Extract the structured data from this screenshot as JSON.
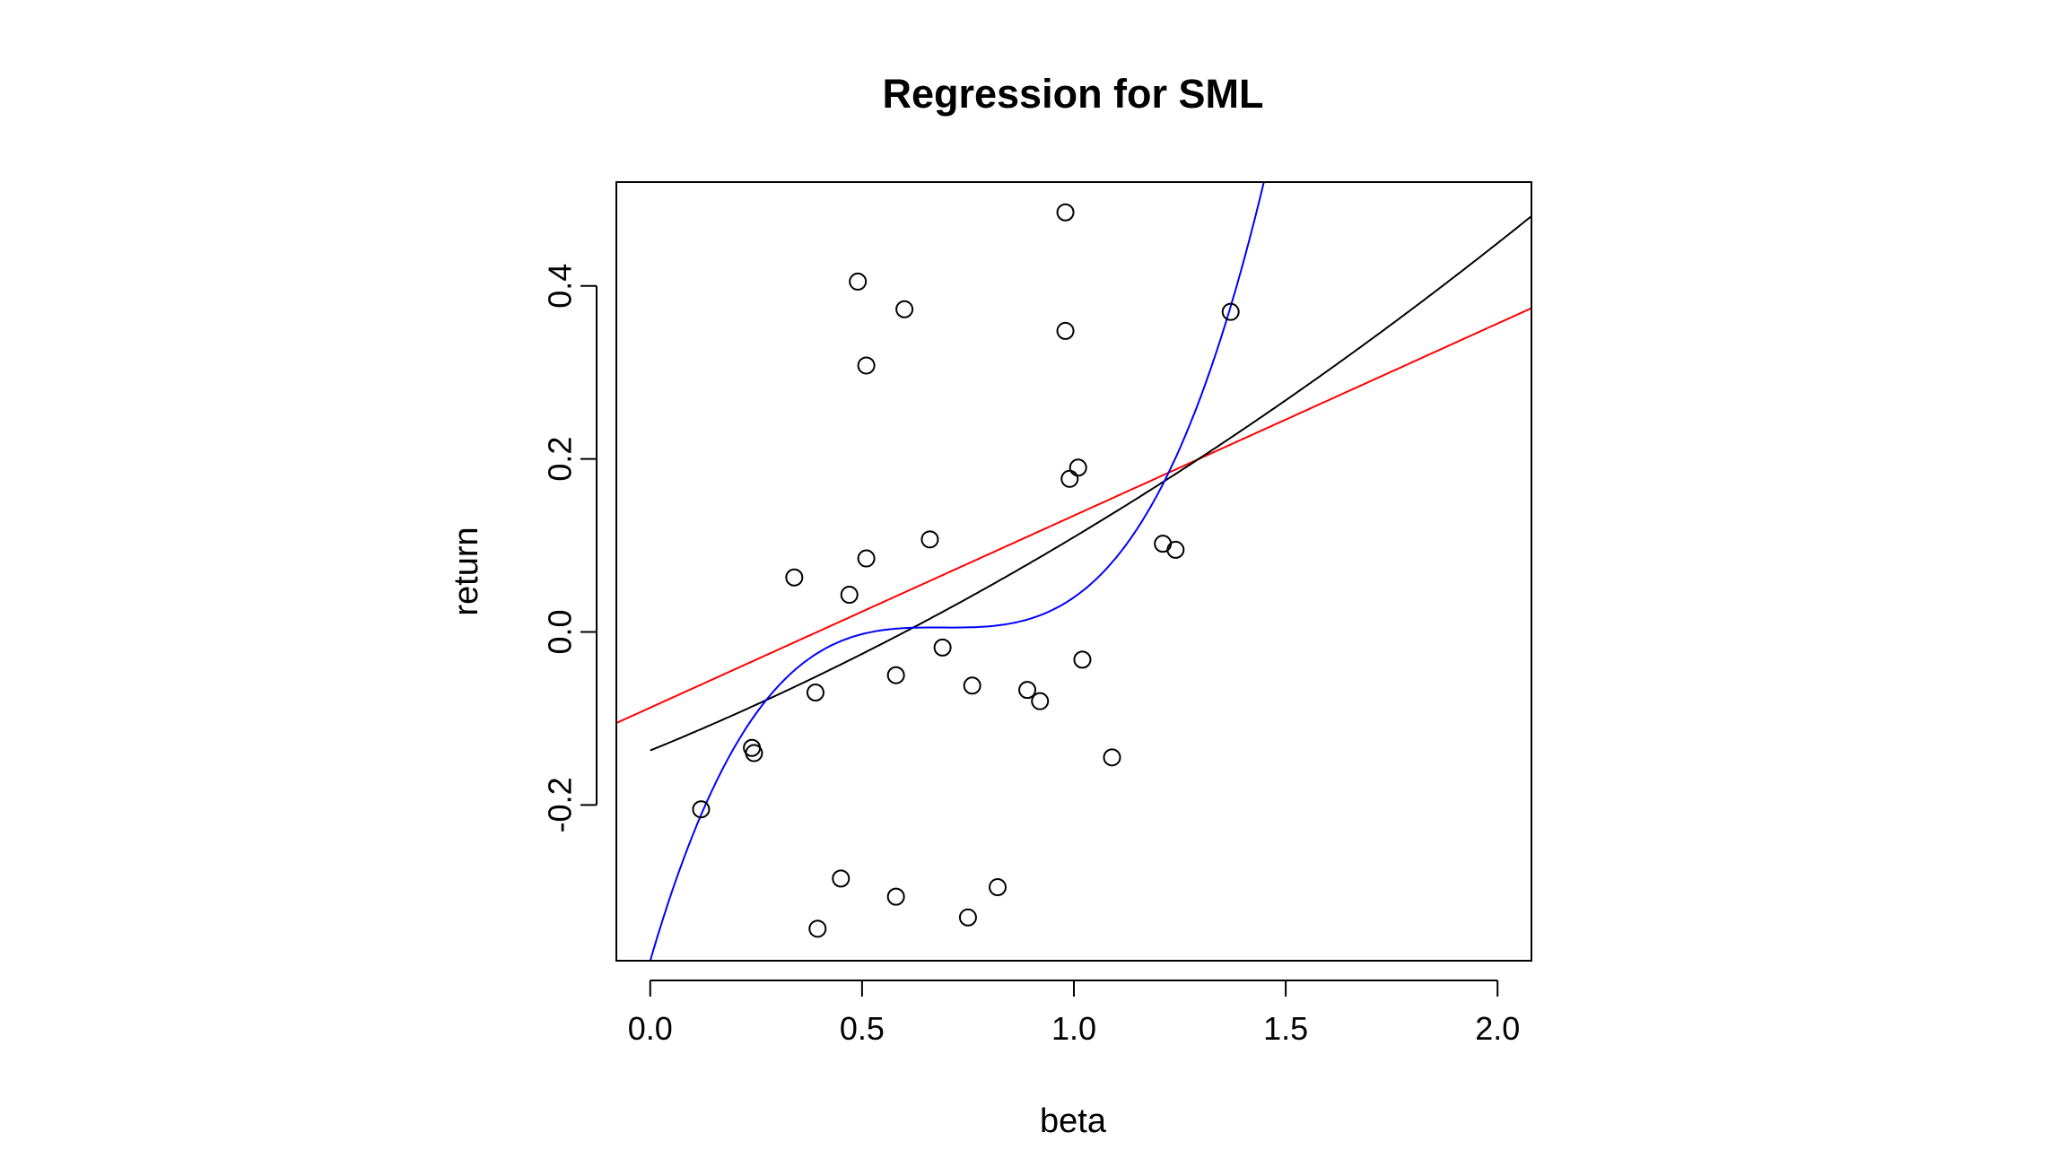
{
  "chart_data": {
    "type": "scatter",
    "title": "Regression for SML",
    "xlabel": "beta",
    "ylabel": "return",
    "xlim": [
      -0.08,
      2.08
    ],
    "ylim": [
      -0.38,
      0.52
    ],
    "x_ticks": [
      0.0,
      0.5,
      1.0,
      1.5,
      2.0
    ],
    "x_tick_labels": [
      "0.0",
      "0.5",
      "1.0",
      "1.5",
      "2.0"
    ],
    "y_ticks": [
      -0.2,
      0.0,
      0.2,
      0.4
    ],
    "y_tick_labels": [
      "-0.2",
      "0.0",
      "0.2",
      "0.4"
    ],
    "grid": false,
    "points": [
      [
        0.12,
        -0.205
      ],
      [
        0.24,
        -0.134
      ],
      [
        0.245,
        -0.14
      ],
      [
        0.34,
        0.063
      ],
      [
        0.39,
        -0.07
      ],
      [
        0.395,
        -0.343
      ],
      [
        0.45,
        -0.285
      ],
      [
        0.47,
        0.043
      ],
      [
        0.49,
        0.405
      ],
      [
        0.51,
        0.085
      ],
      [
        0.51,
        0.308
      ],
      [
        0.58,
        -0.05
      ],
      [
        0.58,
        -0.306
      ],
      [
        0.6,
        0.373
      ],
      [
        0.66,
        0.107
      ],
      [
        0.69,
        -0.018
      ],
      [
        0.75,
        -0.33
      ],
      [
        0.76,
        -0.062
      ],
      [
        0.82,
        -0.295
      ],
      [
        0.89,
        -0.067
      ],
      [
        0.92,
        -0.08
      ],
      [
        0.98,
        0.485
      ],
      [
        0.98,
        0.348
      ],
      [
        0.99,
        0.177
      ],
      [
        1.01,
        0.19
      ],
      [
        1.02,
        -0.032
      ],
      [
        1.09,
        -0.145
      ],
      [
        1.21,
        0.102
      ],
      [
        1.24,
        0.095
      ],
      [
        1.37,
        0.37
      ]
    ],
    "series": [
      {
        "type": "linear",
        "color": "#ff0000",
        "coef": [
          -0.0875,
          0.222
        ]
      },
      {
        "type": "quadratic",
        "color": "#000000",
        "coef": [
          -0.137,
          0.2,
          0.0466
        ]
      },
      {
        "type": "cubic",
        "color": "#0000ff",
        "coef": [
          -0.38,
          1.68,
          -2.44,
          1.18
        ]
      }
    ],
    "colors": {
      "points": "#000000",
      "axis": "#000000",
      "background": "#ffffff"
    }
  }
}
